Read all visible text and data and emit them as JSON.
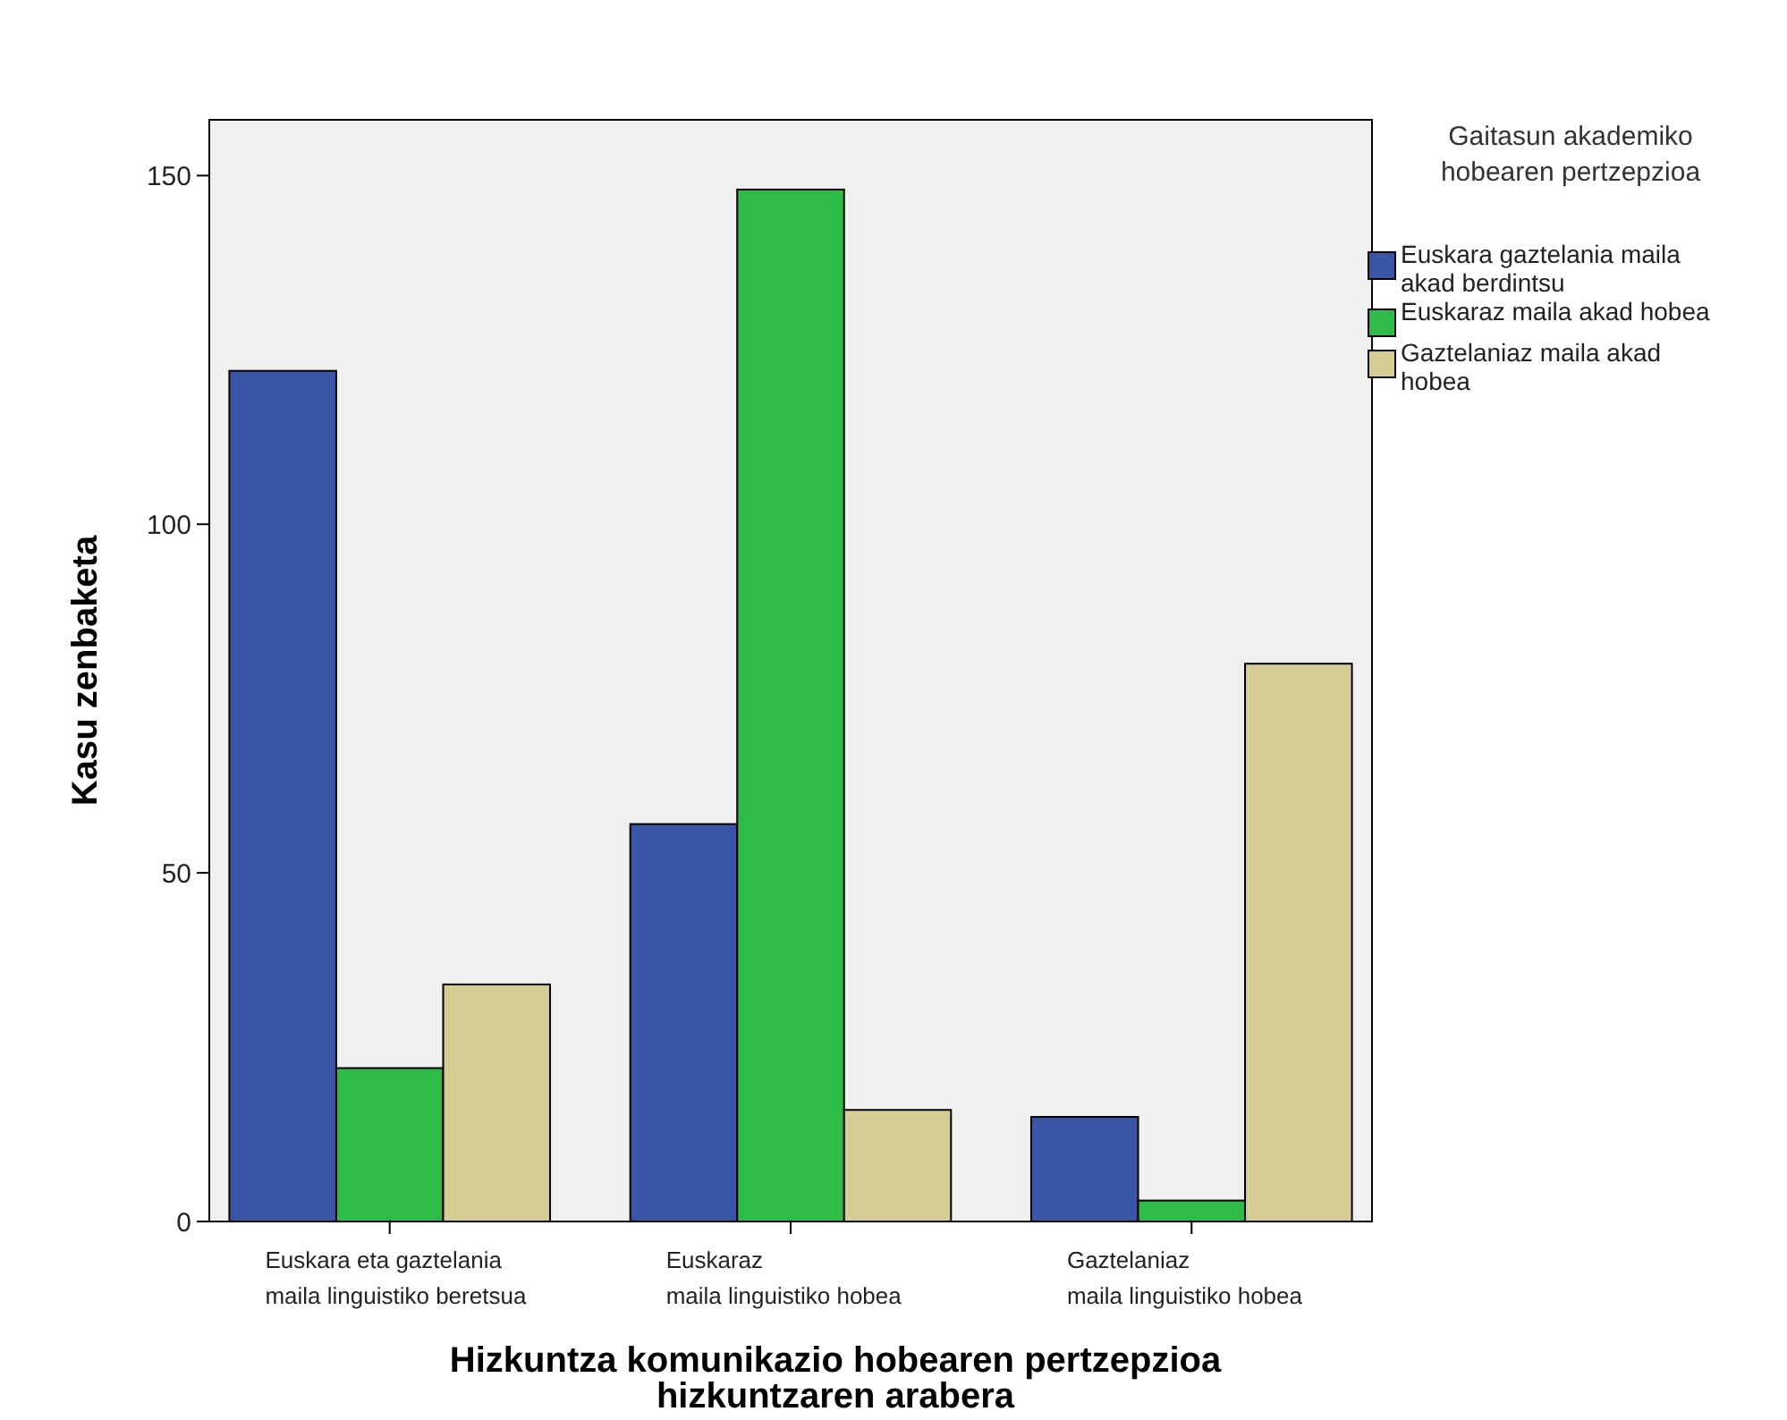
{
  "chart_data": {
    "type": "bar",
    "xlabel": "Hizkuntza komunikazio hobearen pertzepzioa\nhizkuntzaren arabera",
    "ylabel": "Kasu zenbaketa",
    "legend_title": "Gaitasun akademiko\nhobearen pertzepzioa",
    "categories": [
      "Euskara eta gaztelania\nmaila linguistiko beretsua",
      "Euskaraz\nmaila linguistiko hobea",
      "Gaztelaniaz\nmaila linguistiko hobea"
    ],
    "series": [
      {
        "name": "Euskara gaztelania maila\nakad berdintsu",
        "color": "#3a55a4",
        "values": [
          122,
          57,
          15
        ]
      },
      {
        "name": "Euskaraz maila akad hobea",
        "color": "#2ebb48",
        "values": [
          22,
          148,
          3
        ]
      },
      {
        "name": "Gaztelaniaz maila akad\nhobea",
        "color": "#d6cd94",
        "values": [
          34,
          16,
          80
        ]
      }
    ],
    "ylim": [
      0,
      158
    ],
    "yticks": [
      0,
      50,
      100,
      150
    ],
    "grid": false,
    "legend": "right"
  }
}
